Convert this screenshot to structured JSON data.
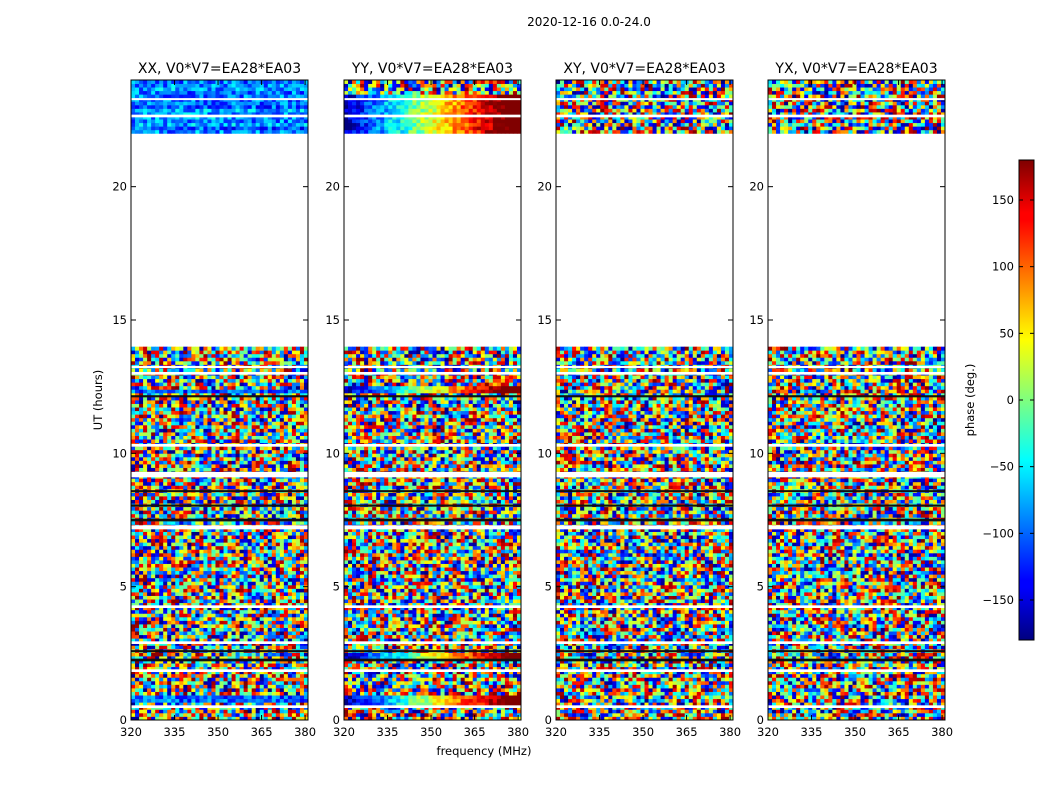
{
  "chart_data": {
    "type": "heatmap",
    "title": "2020-12-16 0.0-24.0",
    "xlabel": "frequency (MHz)",
    "ylabel": "UT (hours)",
    "xlim": [
      320,
      381
    ],
    "ylim": [
      0,
      24
    ],
    "xticks": [
      320,
      335,
      350,
      365,
      380
    ],
    "yticks": [
      0,
      5,
      10,
      15,
      20
    ],
    "no_data_range": [
      14.0,
      22.0
    ],
    "panels": [
      {
        "name": "XX",
        "title": "XX, V0*V7=EA28*EA03"
      },
      {
        "name": "YY",
        "title": "YY, V0*V7=EA28*EA03"
      },
      {
        "name": "XY",
        "title": "XY, V0*V7=EA28*EA03"
      },
      {
        "name": "YX",
        "title": "YX, V0*V7=EA28*EA03"
      }
    ],
    "colorbar": {
      "label": "phase (deg.)",
      "range": [
        -180,
        180
      ],
      "ticks": [
        150,
        100,
        50,
        0,
        -50,
        -100,
        -150
      ],
      "colormap": "jet"
    }
  }
}
